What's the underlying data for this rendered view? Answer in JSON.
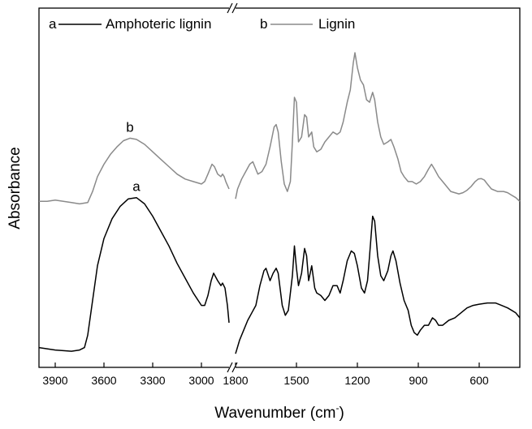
{
  "chart_data": {
    "type": "line",
    "xlabel": "Wavenumber (cm",
    "xlabel_superscript": "-",
    "xlabel_close": ")",
    "ylabel": "Absorbance",
    "x_axis": {
      "reversed": true,
      "broken": true,
      "segments": [
        {
          "xlim": [
            4000,
            2830
          ],
          "ticks": [
            3900,
            3600,
            3300,
            3000
          ]
        },
        {
          "xlim": [
            1800,
            400
          ],
          "ticks": [
            1800,
            1500,
            1200,
            900,
            600
          ]
        }
      ]
    },
    "legend": {
      "placement": "top-left",
      "entries": [
        {
          "letter": "a",
          "name": "Amphoteric lignin",
          "color": "#000000"
        },
        {
          "letter": "b",
          "name": "Lignin",
          "color": "#8a8a8a"
        }
      ]
    },
    "series": [
      {
        "id": "a",
        "name": "Amphoteric lignin",
        "label": "a",
        "label_at": 3420,
        "color": "#000000",
        "segments": [
          [
            [
              4000,
              0.03
            ],
            [
              3900,
              0.02
            ],
            [
              3800,
              0.015
            ],
            [
              3750,
              0.02
            ],
            [
              3720,
              0.03
            ],
            [
              3700,
              0.08
            ],
            [
              3670,
              0.22
            ],
            [
              3640,
              0.36
            ],
            [
              3600,
              0.47
            ],
            [
              3550,
              0.55
            ],
            [
              3500,
              0.6
            ],
            [
              3450,
              0.63
            ],
            [
              3400,
              0.635
            ],
            [
              3350,
              0.61
            ],
            [
              3300,
              0.56
            ],
            [
              3250,
              0.5
            ],
            [
              3200,
              0.44
            ],
            [
              3150,
              0.37
            ],
            [
              3100,
              0.31
            ],
            [
              3050,
              0.25
            ],
            [
              3000,
              0.2
            ],
            [
              2980,
              0.2
            ],
            [
              2960,
              0.24
            ],
            [
              2940,
              0.3
            ],
            [
              2925,
              0.33
            ],
            [
              2900,
              0.3
            ],
            [
              2880,
              0.28
            ],
            [
              2870,
              0.29
            ],
            [
              2855,
              0.27
            ],
            [
              2840,
              0.2
            ],
            [
              2830,
              0.13
            ]
          ],
          [
            [
              1800,
              0.005
            ],
            [
              1780,
              0.06
            ],
            [
              1760,
              0.1
            ],
            [
              1740,
              0.14
            ],
            [
              1720,
              0.17
            ],
            [
              1700,
              0.2
            ],
            [
              1680,
              0.28
            ],
            [
              1660,
              0.34
            ],
            [
              1650,
              0.35
            ],
            [
              1630,
              0.3
            ],
            [
              1615,
              0.33
            ],
            [
              1600,
              0.35
            ],
            [
              1590,
              0.33
            ],
            [
              1570,
              0.2
            ],
            [
              1555,
              0.16
            ],
            [
              1540,
              0.18
            ],
            [
              1520,
              0.32
            ],
            [
              1510,
              0.44
            ],
            [
              1500,
              0.35
            ],
            [
              1490,
              0.28
            ],
            [
              1475,
              0.33
            ],
            [
              1460,
              0.43
            ],
            [
              1450,
              0.4
            ],
            [
              1440,
              0.3
            ],
            [
              1425,
              0.36
            ],
            [
              1410,
              0.27
            ],
            [
              1400,
              0.25
            ],
            [
              1380,
              0.24
            ],
            [
              1360,
              0.22
            ],
            [
              1340,
              0.24
            ],
            [
              1320,
              0.28
            ],
            [
              1300,
              0.28
            ],
            [
              1285,
              0.25
            ],
            [
              1270,
              0.3
            ],
            [
              1250,
              0.38
            ],
            [
              1230,
              0.42
            ],
            [
              1215,
              0.41
            ],
            [
              1200,
              0.36
            ],
            [
              1180,
              0.27
            ],
            [
              1165,
              0.25
            ],
            [
              1150,
              0.3
            ],
            [
              1140,
              0.4
            ],
            [
              1125,
              0.56
            ],
            [
              1115,
              0.54
            ],
            [
              1100,
              0.4
            ],
            [
              1085,
              0.32
            ],
            [
              1070,
              0.3
            ],
            [
              1050,
              0.34
            ],
            [
              1035,
              0.4
            ],
            [
              1025,
              0.42
            ],
            [
              1010,
              0.38
            ],
            [
              990,
              0.29
            ],
            [
              970,
              0.22
            ],
            [
              950,
              0.18
            ],
            [
              935,
              0.12
            ],
            [
              920,
              0.09
            ],
            [
              905,
              0.08
            ],
            [
              890,
              0.1
            ],
            [
              870,
              0.12
            ],
            [
              850,
              0.12
            ],
            [
              830,
              0.15
            ],
            [
              815,
              0.14
            ],
            [
              800,
              0.12
            ],
            [
              780,
              0.12
            ],
            [
              750,
              0.14
            ],
            [
              720,
              0.15
            ],
            [
              690,
              0.17
            ],
            [
              660,
              0.19
            ],
            [
              630,
              0.2
            ],
            [
              600,
              0.205
            ],
            [
              560,
              0.21
            ],
            [
              520,
              0.21
            ],
            [
              490,
              0.2
            ],
            [
              460,
              0.19
            ],
            [
              440,
              0.18
            ],
            [
              420,
              0.17
            ],
            [
              400,
              0.15
            ]
          ]
        ]
      },
      {
        "id": "b",
        "name": "Lignin",
        "label": "b",
        "label_at": 3420,
        "color": "#8a8a8a",
        "segments": [
          [
            [
              4000,
              0.62
            ],
            [
              3950,
              0.62
            ],
            [
              3900,
              0.625
            ],
            [
              3850,
              0.62
            ],
            [
              3800,
              0.615
            ],
            [
              3750,
              0.61
            ],
            [
              3700,
              0.615
            ],
            [
              3670,
              0.66
            ],
            [
              3640,
              0.72
            ],
            [
              3600,
              0.77
            ],
            [
              3560,
              0.81
            ],
            [
              3520,
              0.84
            ],
            [
              3480,
              0.865
            ],
            [
              3440,
              0.875
            ],
            [
              3400,
              0.87
            ],
            [
              3350,
              0.85
            ],
            [
              3300,
              0.82
            ],
            [
              3250,
              0.79
            ],
            [
              3200,
              0.76
            ],
            [
              3150,
              0.73
            ],
            [
              3100,
              0.71
            ],
            [
              3050,
              0.7
            ],
            [
              3000,
              0.69
            ],
            [
              2980,
              0.7
            ],
            [
              2960,
              0.73
            ],
            [
              2935,
              0.77
            ],
            [
              2920,
              0.76
            ],
            [
              2900,
              0.73
            ],
            [
              2880,
              0.72
            ],
            [
              2870,
              0.73
            ],
            [
              2860,
              0.72
            ],
            [
              2850,
              0.7
            ],
            [
              2830,
              0.67
            ]
          ],
          [
            [
              1800,
              0.63
            ],
            [
              1790,
              0.67
            ],
            [
              1770,
              0.71
            ],
            [
              1750,
              0.74
            ],
            [
              1730,
              0.77
            ],
            [
              1715,
              0.78
            ],
            [
              1700,
              0.75
            ],
            [
              1690,
              0.73
            ],
            [
              1670,
              0.74
            ],
            [
              1650,
              0.77
            ],
            [
              1630,
              0.84
            ],
            [
              1610,
              0.92
            ],
            [
              1600,
              0.93
            ],
            [
              1590,
              0.9
            ],
            [
              1575,
              0.78
            ],
            [
              1560,
              0.69
            ],
            [
              1545,
              0.66
            ],
            [
              1530,
              0.7
            ],
            [
              1520,
              0.86
            ],
            [
              1510,
              1.04
            ],
            [
              1500,
              1.02
            ],
            [
              1490,
              0.86
            ],
            [
              1475,
              0.88
            ],
            [
              1460,
              0.97
            ],
            [
              1450,
              0.96
            ],
            [
              1440,
              0.88
            ],
            [
              1425,
              0.9
            ],
            [
              1415,
              0.84
            ],
            [
              1400,
              0.82
            ],
            [
              1380,
              0.83
            ],
            [
              1360,
              0.86
            ],
            [
              1340,
              0.88
            ],
            [
              1320,
              0.9
            ],
            [
              1300,
              0.89
            ],
            [
              1285,
              0.9
            ],
            [
              1270,
              0.94
            ],
            [
              1250,
              1.02
            ],
            [
              1235,
              1.07
            ],
            [
              1220,
              1.18
            ],
            [
              1212,
              1.22
            ],
            [
              1200,
              1.16
            ],
            [
              1185,
              1.11
            ],
            [
              1170,
              1.09
            ],
            [
              1155,
              1.03
            ],
            [
              1140,
              1.02
            ],
            [
              1125,
              1.06
            ],
            [
              1115,
              1.03
            ],
            [
              1100,
              0.94
            ],
            [
              1085,
              0.88
            ],
            [
              1070,
              0.85
            ],
            [
              1050,
              0.86
            ],
            [
              1035,
              0.87
            ],
            [
              1020,
              0.84
            ],
            [
              1000,
              0.79
            ],
            [
              985,
              0.74
            ],
            [
              970,
              0.72
            ],
            [
              950,
              0.7
            ],
            [
              930,
              0.7
            ],
            [
              910,
              0.69
            ],
            [
              890,
              0.7
            ],
            [
              870,
              0.72
            ],
            [
              850,
              0.75
            ],
            [
              835,
              0.77
            ],
            [
              820,
              0.75
            ],
            [
              800,
              0.72
            ],
            [
              780,
              0.7
            ],
            [
              760,
              0.68
            ],
            [
              740,
              0.66
            ],
            [
              720,
              0.655
            ],
            [
              700,
              0.65
            ],
            [
              680,
              0.655
            ],
            [
              660,
              0.665
            ],
            [
              640,
              0.68
            ],
            [
              620,
              0.7
            ],
            [
              605,
              0.71
            ],
            [
              590,
              0.712
            ],
            [
              575,
              0.706
            ],
            [
              560,
              0.69
            ],
            [
              540,
              0.67
            ],
            [
              510,
              0.66
            ],
            [
              480,
              0.66
            ],
            [
              460,
              0.655
            ],
            [
              440,
              0.645
            ],
            [
              420,
              0.635
            ],
            [
              400,
              0.62
            ]
          ]
        ]
      }
    ],
    "ylim": [
      -0.05,
      1.4
    ],
    "grid": false
  }
}
